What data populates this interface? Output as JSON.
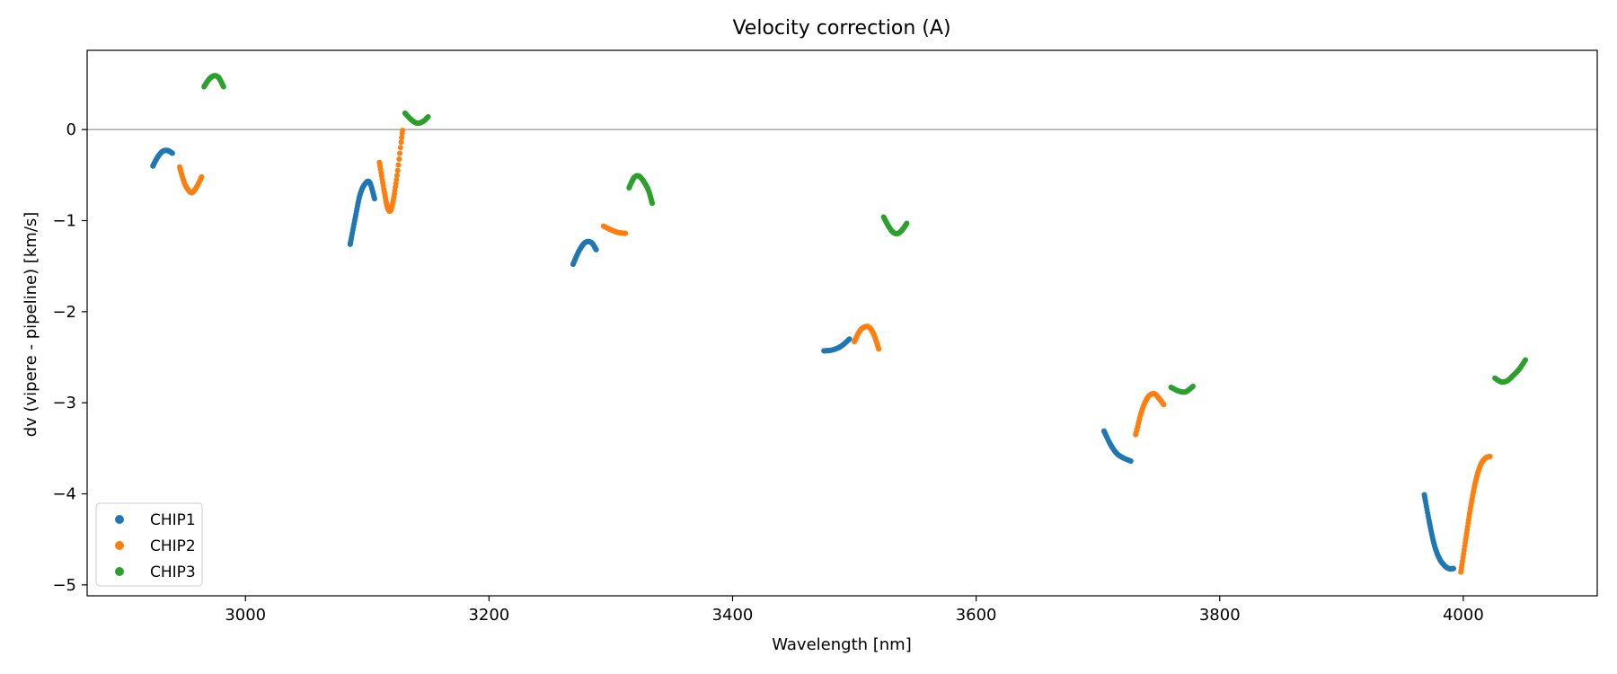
{
  "chart_data": {
    "type": "scatter",
    "title": "Velocity correction (A)",
    "xlabel": "Wavelength [nm]",
    "ylabel": "dv (vipere - pipeline) [km/s]",
    "xlim": [
      2870,
      4110
    ],
    "ylim": [
      -5.12,
      0.87
    ],
    "xticks": [
      3000,
      3200,
      3400,
      3600,
      3800,
      4000
    ],
    "yticks": [
      0,
      -1,
      -2,
      -3,
      -4,
      -5
    ],
    "reference_line_y": 0,
    "legend_position": "lower-left",
    "series": [
      {
        "name": "CHIP1",
        "color": "#1f77b4",
        "segments": [
          {
            "x": [
              2924,
              2928,
              2932,
              2936,
              2940
            ],
            "y": [
              -0.4,
              -0.3,
              -0.24,
              -0.23,
              -0.26
            ]
          },
          {
            "x": [
              3086,
              3090,
              3094,
              3098,
              3102,
              3106
            ],
            "y": [
              -1.26,
              -0.98,
              -0.72,
              -0.6,
              -0.58,
              -0.76
            ]
          },
          {
            "x": [
              3269,
              3274,
              3279,
              3284,
              3288
            ],
            "y": [
              -1.48,
              -1.33,
              -1.24,
              -1.24,
              -1.32
            ]
          },
          {
            "x": [
              3475,
              3482,
              3489,
              3496
            ],
            "y": [
              -2.43,
              -2.42,
              -2.38,
              -2.3
            ]
          },
          {
            "x": [
              3705,
              3710,
              3715,
              3720,
              3727
            ],
            "y": [
              -3.31,
              -3.45,
              -3.55,
              -3.6,
              -3.64
            ]
          },
          {
            "x": [
              3968,
              3972,
              3976,
              3980,
              3984,
              3988,
              3992
            ],
            "y": [
              -4.01,
              -4.3,
              -4.55,
              -4.7,
              -4.78,
              -4.82,
              -4.82
            ]
          }
        ]
      },
      {
        "name": "CHIP2",
        "color": "#ff7f0e",
        "segments": [
          {
            "x": [
              2946,
              2950,
              2955,
              2959,
              2964
            ],
            "y": [
              -0.41,
              -0.59,
              -0.69,
              -0.65,
              -0.52
            ]
          },
          {
            "x": [
              3110,
              3114,
              3117,
              3120,
              3124,
              3129
            ],
            "y": [
              -0.36,
              -0.68,
              -0.87,
              -0.86,
              -0.55,
              -0.01
            ]
          },
          {
            "x": [
              3294,
              3300,
              3306,
              3312
            ],
            "y": [
              -1.06,
              -1.1,
              -1.13,
              -1.14
            ]
          },
          {
            "x": [
              3500,
              3504,
              3508,
              3512,
              3516,
              3520
            ],
            "y": [
              -2.33,
              -2.22,
              -2.17,
              -2.17,
              -2.25,
              -2.41
            ]
          },
          {
            "x": [
              3731,
              3736,
              3741,
              3746,
              3750,
              3754
            ],
            "y": [
              -3.35,
              -3.09,
              -2.94,
              -2.9,
              -2.95,
              -3.02
            ]
          },
          {
            "x": [
              3998,
              4002,
              4006,
              4010,
              4014,
              4018,
              4022
            ],
            "y": [
              -4.86,
              -4.5,
              -4.15,
              -3.87,
              -3.69,
              -3.61,
              -3.59
            ]
          }
        ]
      },
      {
        "name": "CHIP3",
        "color": "#2ca02c",
        "segments": [
          {
            "x": [
              2966,
              2970,
              2974,
              2978,
              2982
            ],
            "y": [
              0.47,
              0.55,
              0.59,
              0.57,
              0.47
            ]
          },
          {
            "x": [
              3131,
              3136,
              3141,
              3146,
              3150
            ],
            "y": [
              0.18,
              0.11,
              0.07,
              0.09,
              0.14
            ]
          },
          {
            "x": [
              3315,
              3319,
              3323,
              3327,
              3331,
              3334
            ],
            "y": [
              -0.64,
              -0.53,
              -0.51,
              -0.57,
              -0.67,
              -0.81
            ]
          },
          {
            "x": [
              3524,
              3528,
              3532,
              3536,
              3540,
              3543
            ],
            "y": [
              -0.96,
              -1.06,
              -1.13,
              -1.14,
              -1.09,
              -1.03
            ]
          },
          {
            "x": [
              3760,
              3766,
              3772,
              3778
            ],
            "y": [
              -2.83,
              -2.87,
              -2.88,
              -2.82
            ]
          },
          {
            "x": [
              4026,
              4031,
              4036,
              4041,
              4046,
              4051
            ],
            "y": [
              -2.73,
              -2.77,
              -2.76,
              -2.7,
              -2.63,
              -2.53
            ]
          }
        ]
      }
    ]
  }
}
